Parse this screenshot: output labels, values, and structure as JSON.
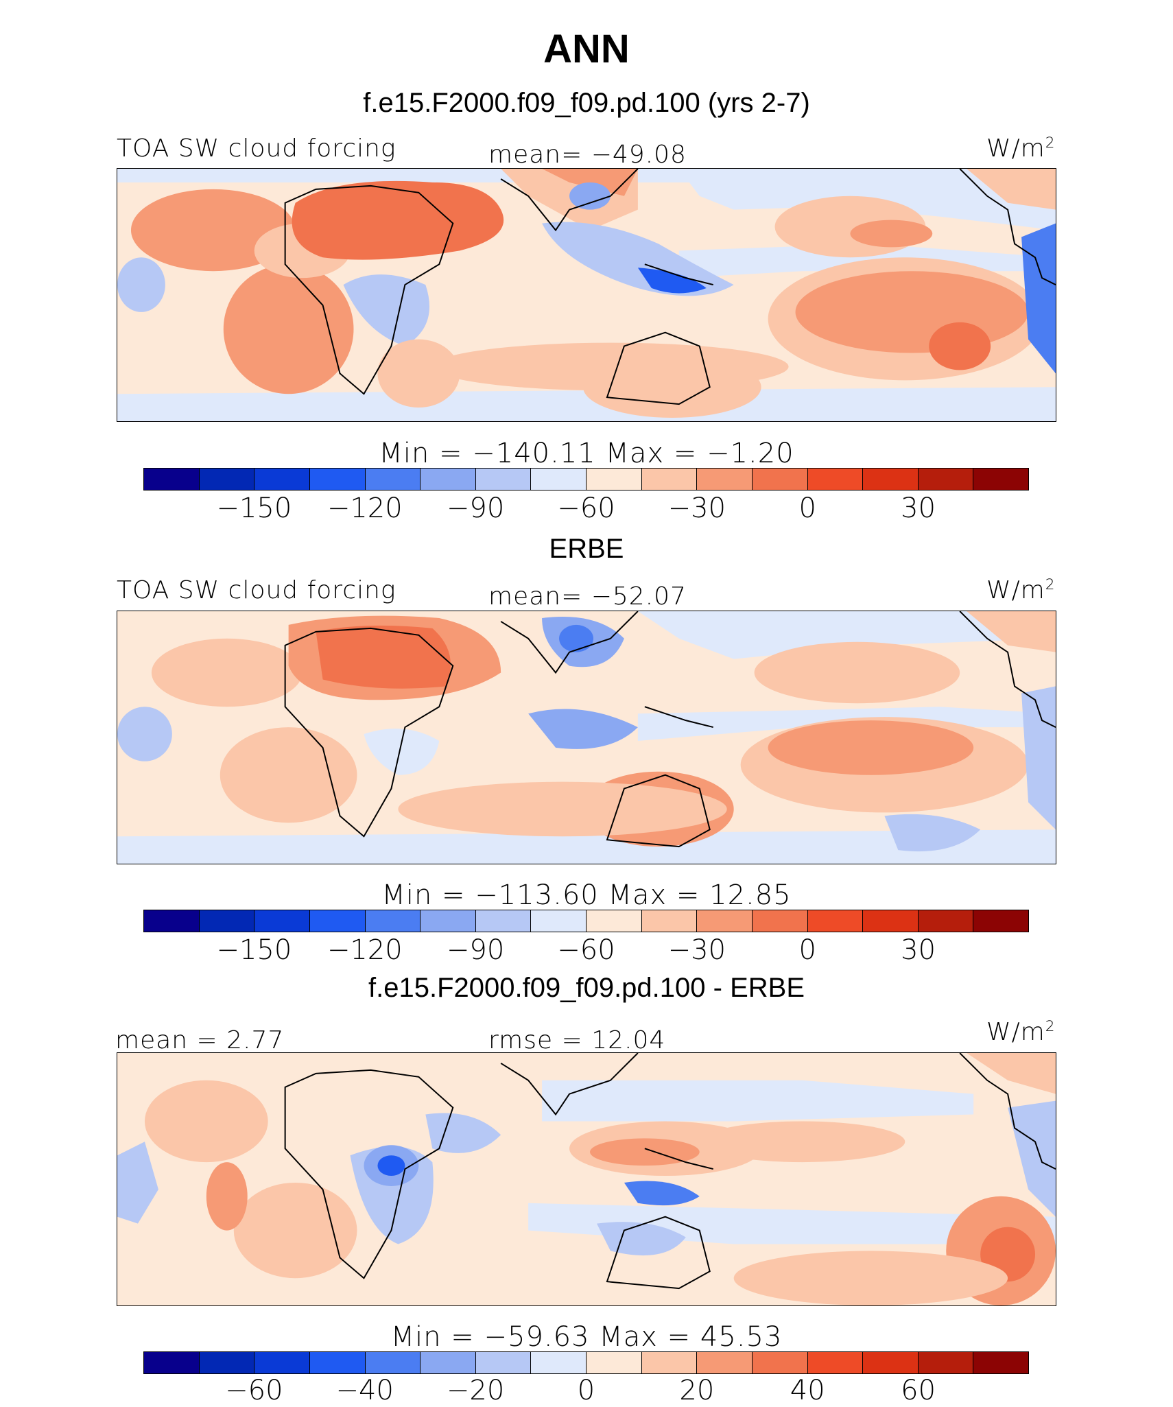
{
  "title": "ANN",
  "palette": [
    "#08008c",
    "#0228b4",
    "#0a3ad6",
    "#1f5af2",
    "#4b7df2",
    "#8aa8f2",
    "#b6c8f5",
    "#dfe9fb",
    "#fde9d8",
    "#fbc6a9",
    "#f69a75",
    "#f1734d",
    "#ee4b27",
    "#dc3214",
    "#b51e0c",
    "#8c0404"
  ],
  "panels": [
    {
      "heading": "f.e15.F2000.f09_f09.pd.100 (yrs 2-7)",
      "left_label": "TOA SW cloud forcing",
      "center_label": "mean= −49.08",
      "units": "W/m",
      "units_sup": "2",
      "minmax": "Min  =  −140.11  Max  =   −1.20",
      "ticks": [
        "−150",
        "−120",
        "−90",
        "−60",
        "−30",
        "0",
        "30"
      ]
    },
    {
      "heading": "ERBE",
      "left_label": "TOA SW cloud forcing",
      "center_label": "mean= −52.07",
      "units": "W/m",
      "units_sup": "2",
      "minmax": "Min  =  −113.60  Max  =   12.85",
      "ticks": [
        "−150",
        "−120",
        "−90",
        "−60",
        "−30",
        "0",
        "30"
      ]
    },
    {
      "heading": "f.e15.F2000.f09_f09.pd.100 - ERBE",
      "left_label": "mean =   2.77",
      "center_label": "rmse  =   12.04",
      "units": "W/m",
      "units_sup": "2",
      "minmax": "Min  =  −59.63  Max  =   45.53",
      "ticks": [
        "−60",
        "−40",
        "−20",
        "0",
        "20",
        "40",
        "60"
      ]
    }
  ]
}
